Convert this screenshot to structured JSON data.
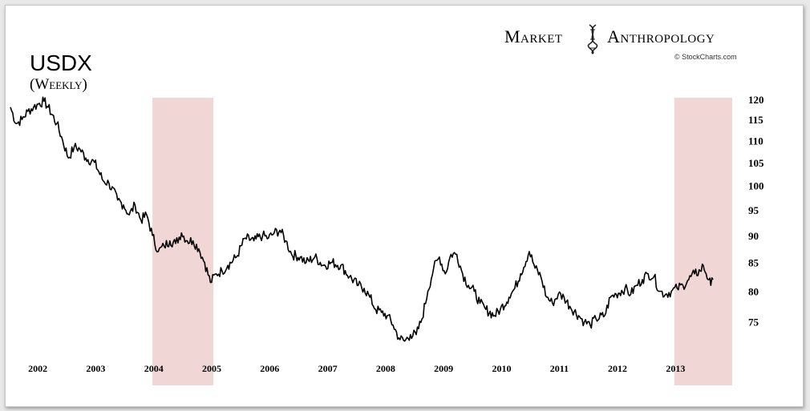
{
  "title": "USDX",
  "subtitle": "(Weekly)",
  "brand": {
    "left": "Market",
    "right": "Anthropology",
    "credit": "© StockCharts.com",
    "logo_icon": "dna-helix-icon"
  },
  "colors": {
    "line": "#000000",
    "highlight": "#f1d6d6",
    "background": "#ffffff"
  },
  "chart_data": {
    "type": "line",
    "title": "USDX",
    "subtitle": "(Weekly)",
    "xlabel": "",
    "ylabel": "",
    "y_scale": "log",
    "ylim": [
      69,
      121
    ],
    "xlim": [
      2001.5,
      2013.95
    ],
    "y_ticks": [
      75,
      80,
      85,
      90,
      95,
      100,
      105,
      110,
      115,
      120
    ],
    "x_ticks": [
      {
        "label": "2002",
        "x": 2002
      },
      {
        "label": "2003",
        "x": 2003
      },
      {
        "label": "2004",
        "x": 2004
      },
      {
        "label": "2005",
        "x": 2005
      },
      {
        "label": "2006",
        "x": 2006
      },
      {
        "label": "2007",
        "x": 2007
      },
      {
        "label": "2008",
        "x": 2008
      },
      {
        "label": "2009",
        "x": 2009
      },
      {
        "label": "2010",
        "x": 2010
      },
      {
        "label": "2011",
        "x": 2011
      },
      {
        "label": "2012",
        "x": 2012
      },
      {
        "label": "2013",
        "x": 2013
      }
    ],
    "highlight_ranges": [
      [
        2003.95,
        2005.0
      ],
      [
        2012.95,
        2013.95
      ]
    ],
    "series": [
      {
        "points": [
          [
            2001.5,
            118
          ],
          [
            2001.6,
            114
          ],
          [
            2001.7,
            115
          ],
          [
            2001.8,
            117
          ],
          [
            2001.9,
            118
          ],
          [
            2002.0,
            119
          ],
          [
            2002.08,
            119.5
          ],
          [
            2002.15,
            118
          ],
          [
            2002.3,
            114
          ],
          [
            2002.4,
            110
          ],
          [
            2002.5,
            106
          ],
          [
            2002.6,
            108.5
          ],
          [
            2002.7,
            108
          ],
          [
            2002.8,
            106
          ],
          [
            2002.95,
            105
          ],
          [
            2003.1,
            101
          ],
          [
            2003.2,
            100.5
          ],
          [
            2003.35,
            97
          ],
          [
            2003.45,
            96
          ],
          [
            2003.55,
            94
          ],
          [
            2003.65,
            96
          ],
          [
            2003.75,
            93
          ],
          [
            2003.85,
            94
          ],
          [
            2003.95,
            90
          ],
          [
            2004.05,
            87
          ],
          [
            2004.15,
            88
          ],
          [
            2004.25,
            89
          ],
          [
            2004.35,
            88.5
          ],
          [
            2004.45,
            90.5
          ],
          [
            2004.55,
            89
          ],
          [
            2004.65,
            89
          ],
          [
            2004.75,
            87.5
          ],
          [
            2004.85,
            85
          ],
          [
            2004.95,
            81.5
          ],
          [
            2005.05,
            83
          ],
          [
            2005.15,
            83.5
          ],
          [
            2005.25,
            84.5
          ],
          [
            2005.4,
            86
          ],
          [
            2005.55,
            89.5
          ],
          [
            2005.7,
            89
          ],
          [
            2005.85,
            90
          ],
          [
            2005.95,
            89.5
          ],
          [
            2006.05,
            90.5
          ],
          [
            2006.15,
            91
          ],
          [
            2006.25,
            89
          ],
          [
            2006.35,
            86.5
          ],
          [
            2006.5,
            86
          ],
          [
            2006.6,
            85
          ],
          [
            2006.75,
            86
          ],
          [
            2006.9,
            84.5
          ],
          [
            2007.05,
            85
          ],
          [
            2007.2,
            84.5
          ],
          [
            2007.35,
            82.5
          ],
          [
            2007.5,
            81
          ],
          [
            2007.6,
            80.5
          ],
          [
            2007.7,
            79
          ],
          [
            2007.8,
            77
          ],
          [
            2007.9,
            76.5
          ],
          [
            2008.0,
            76
          ],
          [
            2008.1,
            74.5
          ],
          [
            2008.2,
            72.5
          ],
          [
            2008.3,
            72
          ],
          [
            2008.4,
            73
          ],
          [
            2008.5,
            73
          ],
          [
            2008.6,
            75.5
          ],
          [
            2008.7,
            80
          ],
          [
            2008.8,
            84
          ],
          [
            2008.9,
            86
          ],
          [
            2009.0,
            83
          ],
          [
            2009.1,
            86.5
          ],
          [
            2009.2,
            86.5
          ],
          [
            2009.3,
            83
          ],
          [
            2009.4,
            81
          ],
          [
            2009.5,
            80
          ],
          [
            2009.6,
            78
          ],
          [
            2009.7,
            77
          ],
          [
            2009.85,
            76
          ],
          [
            2009.95,
            77
          ],
          [
            2010.1,
            79
          ],
          [
            2010.2,
            80.5
          ],
          [
            2010.3,
            83
          ],
          [
            2010.45,
            87
          ],
          [
            2010.55,
            84
          ],
          [
            2010.65,
            82.5
          ],
          [
            2010.75,
            79
          ],
          [
            2010.85,
            78
          ],
          [
            2010.95,
            79.5
          ],
          [
            2011.05,
            79
          ],
          [
            2011.15,
            77.5
          ],
          [
            2011.3,
            76
          ],
          [
            2011.4,
            75
          ],
          [
            2011.5,
            74.5
          ],
          [
            2011.6,
            75.5
          ],
          [
            2011.75,
            76
          ],
          [
            2011.85,
            79
          ],
          [
            2011.95,
            79.5
          ],
          [
            2012.1,
            80.5
          ],
          [
            2012.2,
            79.5
          ],
          [
            2012.3,
            81
          ],
          [
            2012.4,
            82
          ],
          [
            2012.5,
            83
          ],
          [
            2012.6,
            82.5
          ],
          [
            2012.7,
            80
          ],
          [
            2012.8,
            79.5
          ],
          [
            2012.9,
            80
          ],
          [
            2013.0,
            80.5
          ],
          [
            2013.1,
            81
          ],
          [
            2013.2,
            82
          ],
          [
            2013.3,
            83
          ],
          [
            2013.4,
            83.5
          ],
          [
            2013.45,
            84.5
          ],
          [
            2013.5,
            83
          ],
          [
            2013.55,
            82
          ],
          [
            2013.58,
            81
          ],
          [
            2013.62,
            82
          ]
        ]
      }
    ]
  }
}
